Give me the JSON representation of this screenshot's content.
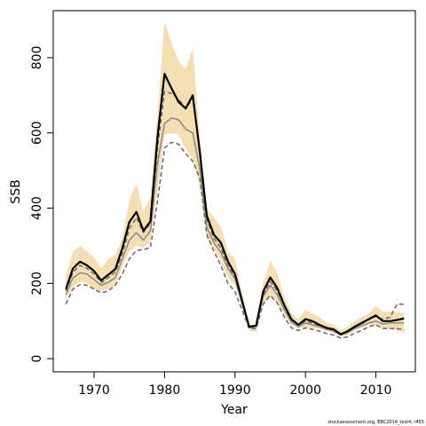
{
  "chart_data": {
    "type": "line",
    "xlabel": "Year",
    "ylabel": "SSB",
    "xlim": [
      1964.2,
      2015.6
    ],
    "ylim": [
      -35,
      925
    ],
    "x_ticks": [
      1970,
      1980,
      1990,
      2000,
      2010
    ],
    "y_ticks": [
      0,
      200,
      400,
      600,
      800
    ],
    "grid": false,
    "legend": "none",
    "x": [
      1966,
      1967,
      1968,
      1969,
      1970,
      1971,
      1972,
      1973,
      1974,
      1975,
      1976,
      1977,
      1978,
      1979,
      1980,
      1981,
      1982,
      1983,
      1984,
      1985,
      1986,
      1987,
      1988,
      1989,
      1990,
      1991,
      1992,
      1993,
      1994,
      1995,
      1996,
      1997,
      1998,
      1999,
      2000,
      2001,
      2002,
      2003,
      2004,
      2005,
      2006,
      2007,
      2008,
      2009,
      2010,
      2011,
      2012,
      2013,
      2014
    ],
    "series": [
      {
        "role": "upper band",
        "color": "#f5deb3",
        "values": [
          220,
          285,
          300,
          285,
          270,
          240,
          265,
          275,
          320,
          420,
          465,
          390,
          430,
          650,
          895,
          840,
          790,
          770,
          825,
          590,
          400,
          375,
          350,
          285,
          265,
          175,
          80,
          80,
          200,
          260,
          225,
          165,
          120,
          105,
          130,
          120,
          110,
          95,
          90,
          75,
          85,
          100,
          110,
          120,
          140,
          125,
          125,
          125,
          120
        ]
      },
      {
        "role": "lower band",
        "color": "#f5deb3",
        "values": [
          160,
          190,
          205,
          200,
          185,
          180,
          185,
          195,
          245,
          285,
          300,
          295,
          310,
          450,
          595,
          600,
          595,
          560,
          530,
          460,
          320,
          290,
          260,
          215,
          195,
          140,
          75,
          70,
          145,
          165,
          150,
          115,
          90,
          80,
          85,
          80,
          80,
          75,
          70,
          60,
          62,
          75,
          82,
          90,
          88,
          80,
          80,
          75,
          70
        ]
      },
      {
        "role": "estimate",
        "color": "#000000",
        "values": [
          185,
          240,
          258,
          248,
          233,
          208,
          223,
          238,
          293,
          363,
          390,
          340,
          365,
          590,
          757,
          718,
          682,
          665,
          700,
          550,
          380,
          330,
          308,
          258,
          225,
          155,
          85,
          88,
          178,
          216,
          188,
          142,
          105,
          90,
          105,
          100,
          90,
          82,
          78,
          65,
          73,
          85,
          95,
          105,
          115,
          100,
          100,
          103,
          107
        ]
      },
      {
        "role": "grey line",
        "color": "#888888",
        "values": [
          170,
          215,
          228,
          225,
          210,
          195,
          203,
          215,
          265,
          315,
          335,
          315,
          340,
          520,
          625,
          640,
          635,
          610,
          600,
          505,
          350,
          308,
          283,
          240,
          213,
          147,
          82,
          85,
          165,
          195,
          170,
          130,
          97,
          85,
          95,
          90,
          85,
          78,
          73,
          63,
          70,
          80,
          88,
          95,
          100,
          92,
          95,
          95,
          95
        ]
      },
      {
        "role": "dashed lower",
        "color": "#666666",
        "values": [
          145,
          185,
          197,
          195,
          185,
          175,
          180,
          195,
          225,
          265,
          288,
          290,
          295,
          420,
          560,
          575,
          570,
          545,
          525,
          480,
          330,
          285,
          248,
          200,
          178,
          130,
          80,
          80,
          145,
          168,
          148,
          110,
          82,
          75,
          82,
          78,
          73,
          67,
          63,
          55,
          58,
          68,
          75,
          85,
          90,
          80,
          80,
          80,
          77
        ]
      },
      {
        "role": "dashed upper",
        "color": "#666666",
        "values": [
          180,
          230,
          248,
          240,
          225,
          202,
          215,
          230,
          280,
          345,
          375,
          335,
          360,
          560,
          710,
          705,
          690,
          665,
          690,
          560,
          370,
          320,
          295,
          245,
          220,
          155,
          86,
          88,
          168,
          205,
          180,
          140,
          102,
          90,
          100,
          95,
          88,
          80,
          75,
          65,
          73,
          85,
          95,
          105,
          112,
          105,
          110,
          145,
          145
        ]
      }
    ]
  },
  "credit": "stockassessment.org, EBC2014_test4, r455"
}
